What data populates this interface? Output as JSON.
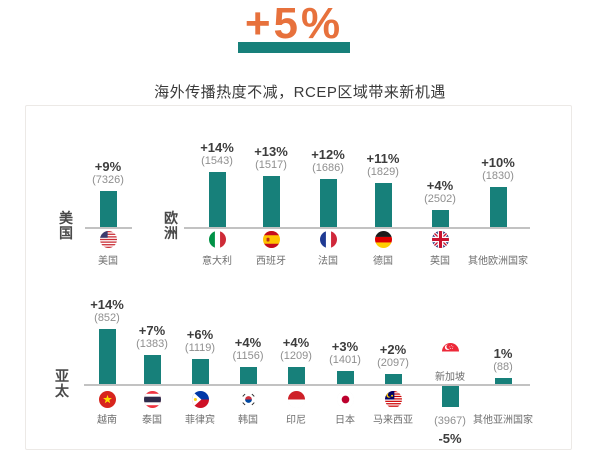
{
  "header": {
    "headline": "+5%",
    "subtitle": "海外传播热度不减，RCEP区域带来新机遇"
  },
  "colors": {
    "accent_orange": "#e7713c",
    "bar_teal": "#17807a",
    "percent_text": "#3d3d3d",
    "value_text": "#8f8f8f",
    "axis_line": "#c2c2c2",
    "country_text": "#6e6e6e",
    "group_text": "#4a4a4a",
    "card_border": "#ece9e6"
  },
  "chart_data": {
    "type": "bar",
    "title": "+5%",
    "subtitle": "海外传播热度不减，RCEP区域带来新机遇",
    "unit": "percent change, absolute value in parentheses",
    "groups": [
      {
        "label": "美国",
        "bars": [
          {
            "country": "美国",
            "flag": "us",
            "flag_icon": "usa-flag-icon",
            "pct": 9,
            "pct_label": "+9%",
            "value": 7326,
            "value_label": "(7326)"
          }
        ]
      },
      {
        "label": "欧洲",
        "bars": [
          {
            "country": "意大利",
            "flag": "it",
            "flag_icon": "italy-flag-icon",
            "pct": 14,
            "pct_label": "+14%",
            "value": 1543,
            "value_label": "(1543)"
          },
          {
            "country": "西班牙",
            "flag": "es",
            "flag_icon": "spain-flag-icon",
            "pct": 13,
            "pct_label": "+13%",
            "value": 1517,
            "value_label": "(1517)"
          },
          {
            "country": "法国",
            "flag": "fr",
            "flag_icon": "france-flag-icon",
            "pct": 12,
            "pct_label": "+12%",
            "value": 1686,
            "value_label": "(1686)"
          },
          {
            "country": "德国",
            "flag": "de",
            "flag_icon": "germany-flag-icon",
            "pct": 11,
            "pct_label": "+11%",
            "value": 1829,
            "value_label": "(1829)"
          },
          {
            "country": "英国",
            "flag": "gb",
            "flag_icon": "uk-flag-icon",
            "pct": 4,
            "pct_label": "+4%",
            "value": 2502,
            "value_label": "(2502)"
          },
          {
            "country": "其他欧洲国家",
            "flag": null,
            "flag_icon": null,
            "pct": 10,
            "pct_label": "+10%",
            "value": 1830,
            "value_label": "(1830)"
          }
        ]
      },
      {
        "label": "亚太",
        "bars": [
          {
            "country": "越南",
            "flag": "vn",
            "flag_icon": "vietnam-flag-icon",
            "pct": 14,
            "pct_label": "+14%",
            "value": 852,
            "value_label": "(852)"
          },
          {
            "country": "泰国",
            "flag": "th",
            "flag_icon": "thailand-flag-icon",
            "pct": 7,
            "pct_label": "+7%",
            "value": 1383,
            "value_label": "(1383)"
          },
          {
            "country": "菲律宾",
            "flag": "ph",
            "flag_icon": "philippines-flag-icon",
            "pct": 6,
            "pct_label": "+6%",
            "value": 1119,
            "value_label": "(1119)"
          },
          {
            "country": "韩国",
            "flag": "kr",
            "flag_icon": "south-korea-flag-icon",
            "pct": 4,
            "pct_label": "+4%",
            "value": 1156,
            "value_label": "(1156)"
          },
          {
            "country": "印尼",
            "flag": "id",
            "flag_icon": "indonesia-flag-icon",
            "pct": 4,
            "pct_label": "+4%",
            "value": 1209,
            "value_label": "(1209)"
          },
          {
            "country": "日本",
            "flag": "jp",
            "flag_icon": "japan-flag-icon",
            "pct": 3,
            "pct_label": "+3%",
            "value": 1401,
            "value_label": "(1401)"
          },
          {
            "country": "马来西亚",
            "flag": "my",
            "flag_icon": "malaysia-flag-icon",
            "pct": 2,
            "pct_label": "+2%",
            "value": 2097,
            "value_label": "(2097)"
          },
          {
            "country": "新加坡",
            "flag": "sg",
            "flag_icon": "singapore-flag-icon",
            "pct": -5,
            "pct_label": "-5%",
            "value": 3967,
            "value_label": "(3967)"
          },
          {
            "country": "其他亚洲国家",
            "flag": null,
            "flag_icon": null,
            "pct": 1,
            "pct_label": "1%",
            "value": 88,
            "value_label": "(88)"
          }
        ]
      }
    ]
  }
}
